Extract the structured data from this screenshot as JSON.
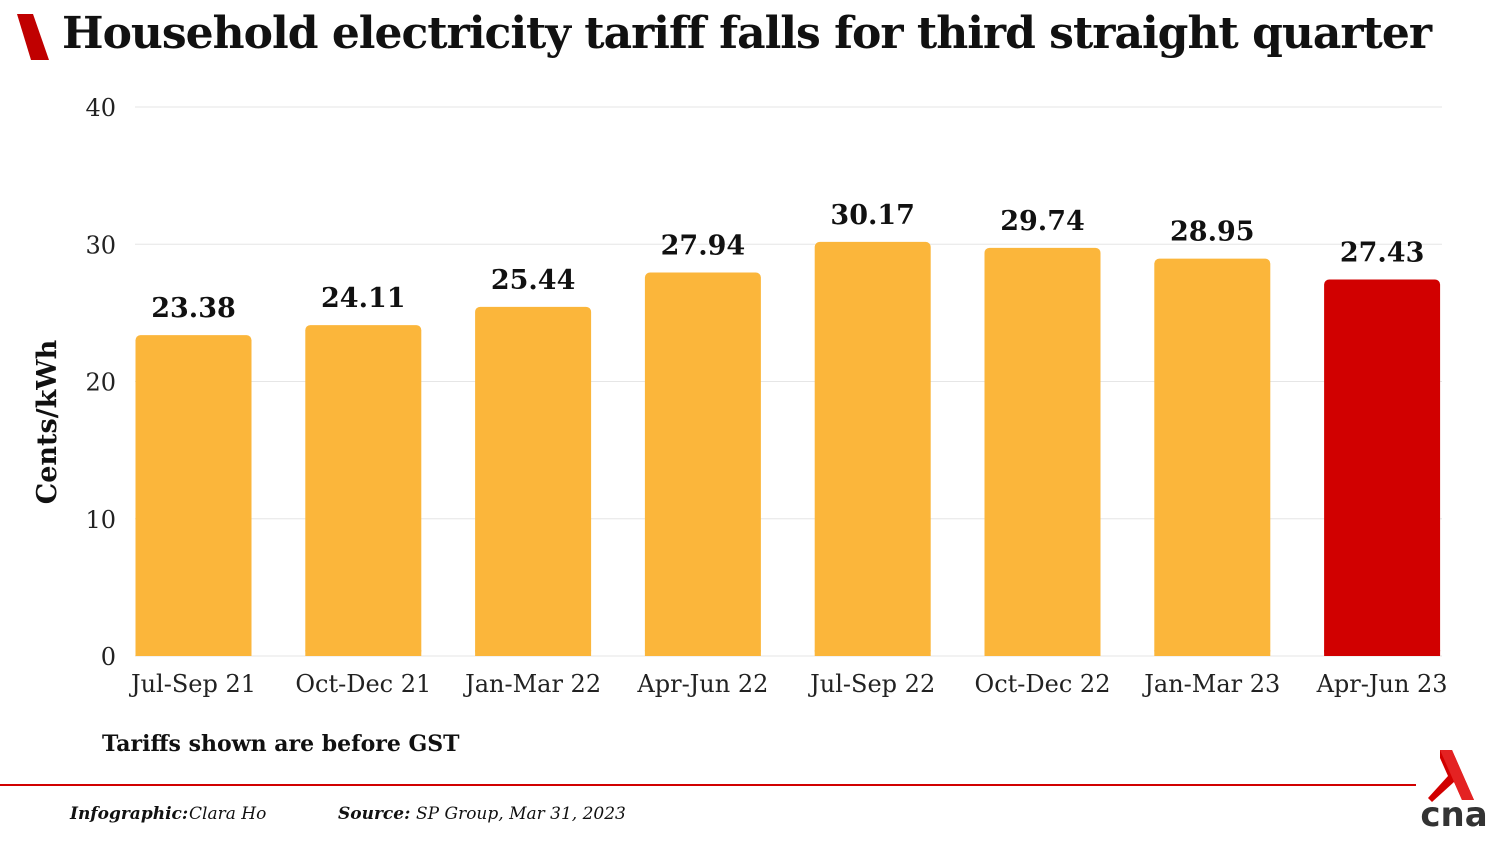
{
  "header": {
    "title": "Household electricity tariff falls for third straight quarter"
  },
  "chart_data": {
    "type": "bar",
    "title": "Household electricity tariff falls for third straight quarter",
    "ylabel": "Cents/kWh",
    "xlabel": "",
    "ylim": [
      0,
      40
    ],
    "yticks": [
      0,
      10,
      20,
      30,
      40
    ],
    "grid": true,
    "categories": [
      "Jul-Sep 21",
      "Oct-Dec 21",
      "Jan-Mar 22",
      "Apr-Jun 22",
      "Jul-Sep 22",
      "Oct-Dec 22",
      "Jan-Mar 23",
      "Apr-Jun 23"
    ],
    "values": [
      23.38,
      24.11,
      25.44,
      27.94,
      30.17,
      29.74,
      28.95,
      27.43
    ],
    "value_labels": [
      "23.38",
      "24.11",
      "25.44",
      "27.94",
      "30.17",
      "29.74",
      "28.95",
      "27.43"
    ],
    "colors": {
      "default": "#FBB63B",
      "highlight": "#D10000"
    },
    "highlight_index": 7
  },
  "note": "Tariffs shown are before GST",
  "footer": {
    "infographic_label": "Infographic:",
    "infographic_value": "Clara Ho",
    "source_label": "Source:",
    "source_value": "SP Group, Mar 31, 2023"
  },
  "logo": {
    "text": "cna",
    "icon": "cna-logo-icon",
    "color": "#D10000"
  }
}
